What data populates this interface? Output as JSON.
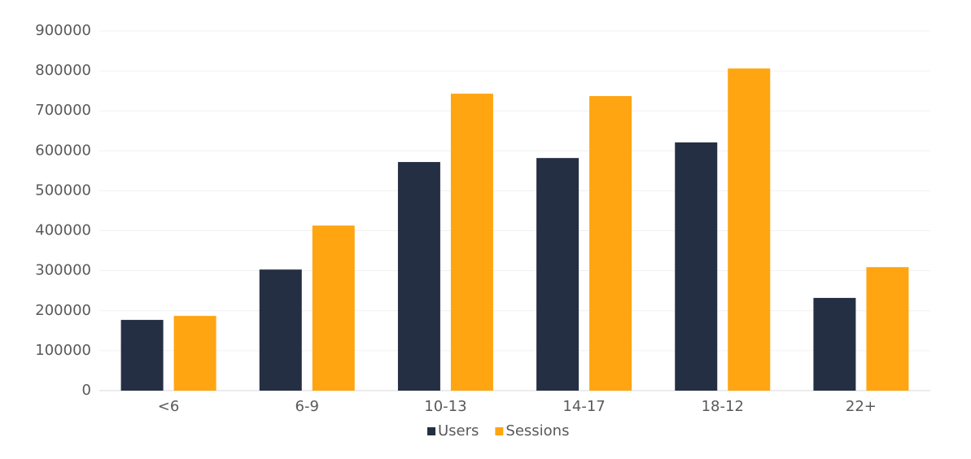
{
  "chart_data": {
    "type": "bar",
    "categories": [
      "<6",
      "6-9",
      "10-13",
      "14-17",
      "18-12",
      "22+"
    ],
    "series": [
      {
        "name": "Users",
        "color": "#252f43",
        "values": [
          177000,
          303000,
          572000,
          582000,
          621000,
          232000
        ]
      },
      {
        "name": "Sessions",
        "color": "#ffa511",
        "values": [
          187000,
          413000,
          743000,
          737000,
          806000,
          309000
        ]
      }
    ],
    "ylim": [
      0,
      900000
    ],
    "yticks": [
      0,
      100000,
      200000,
      300000,
      400000,
      500000,
      600000,
      700000,
      800000,
      900000
    ],
    "grid": true,
    "legend": "bottom"
  }
}
